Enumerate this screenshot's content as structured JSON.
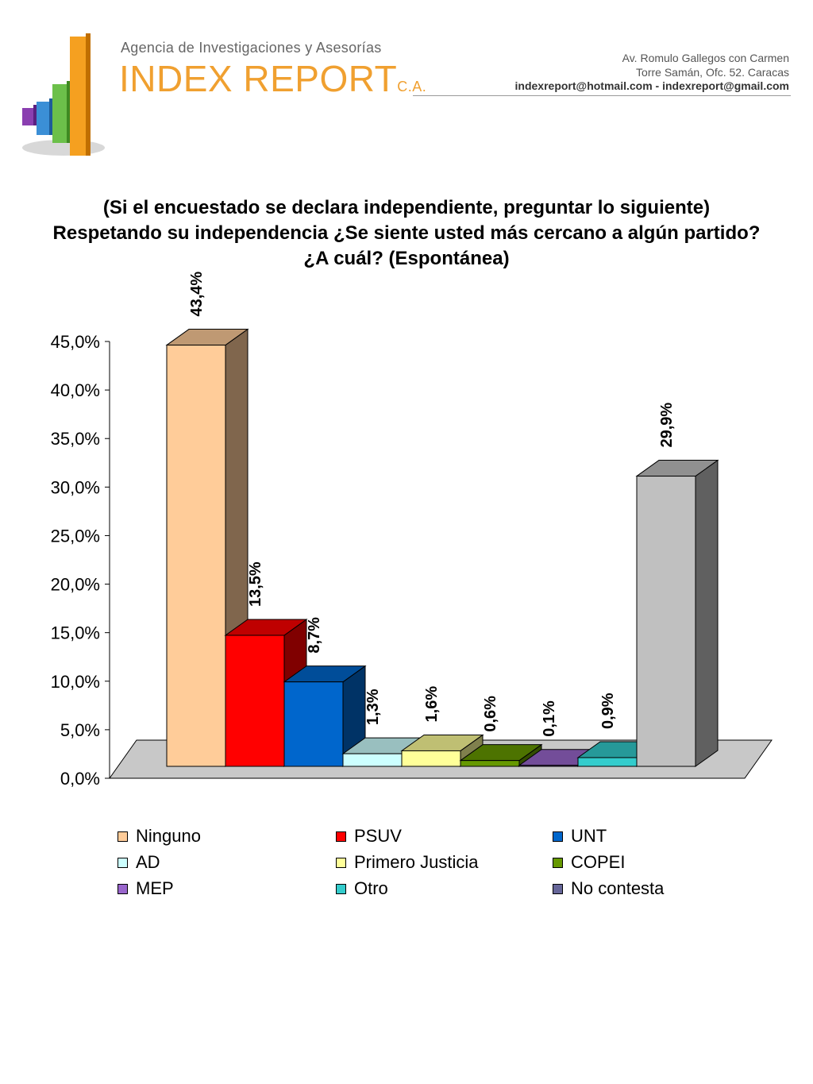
{
  "header": {
    "agency": "Agencia de Investigaciones y Asesorías",
    "brand": "INDEX REPORT",
    "brand_suffix": "C.A.",
    "address_line1": "Av. Romulo Gallegos con Carmen",
    "address_line2": "Torre Samán, Ofc. 52. Caracas",
    "contact": "indexreport@hotmail.com  -  indexreport@gmail.com",
    "logo_icon": "bar-chart-logo-icon"
  },
  "question": {
    "line1": "(Si el encuestado se declara independiente, preguntar lo siguiente)",
    "line2": "Respetando su independencia ¿Se siente usted más cercano a algún partido?",
    "line3": "¿A cuál? (Espontánea)"
  },
  "chart_data": {
    "type": "bar",
    "style": "3d",
    "categories": [
      "Ninguno",
      "PSUV",
      "UNT",
      "AD",
      "Primero Justicia",
      "COPEI",
      "MEP",
      "Otro",
      "No contesta"
    ],
    "values": [
      43.4,
      13.5,
      8.7,
      1.3,
      1.6,
      0.6,
      0.1,
      0.9,
      29.9
    ],
    "value_labels": [
      "43,4%",
      "13,5%",
      "8,7%",
      "1,3%",
      "1,6%",
      "0,6%",
      "0,1%",
      "0,9%",
      "29,9%"
    ],
    "colors": [
      "#FFCC99",
      "#FF0000",
      "#0066CC",
      "#CCFFFF",
      "#FFFF99",
      "#669900",
      "#9966CC",
      "#33CCCC",
      "#C0C0C0"
    ],
    "ylim": [
      0,
      45
    ],
    "yticks": [
      0,
      5,
      10,
      15,
      20,
      25,
      30,
      35,
      40,
      45
    ],
    "ytick_labels": [
      "0,0%",
      "5,0%",
      "10,0%",
      "15,0%",
      "20,0%",
      "25,0%",
      "30,0%",
      "35,0%",
      "40,0%",
      "45,0%"
    ],
    "grid": false,
    "legend": {
      "placement": "bottom",
      "entries": [
        "Ninguno",
        "PSUV",
        "UNT",
        "AD",
        "Primero Justicia",
        "COPEI",
        "MEP",
        "Otro",
        "No contesta"
      ],
      "colors": [
        "#FFCC99",
        "#FF0000",
        "#0066CC",
        "#CCFFFF",
        "#FFFF99",
        "#669900",
        "#9966CC",
        "#33CCCC",
        "#666699"
      ]
    }
  }
}
